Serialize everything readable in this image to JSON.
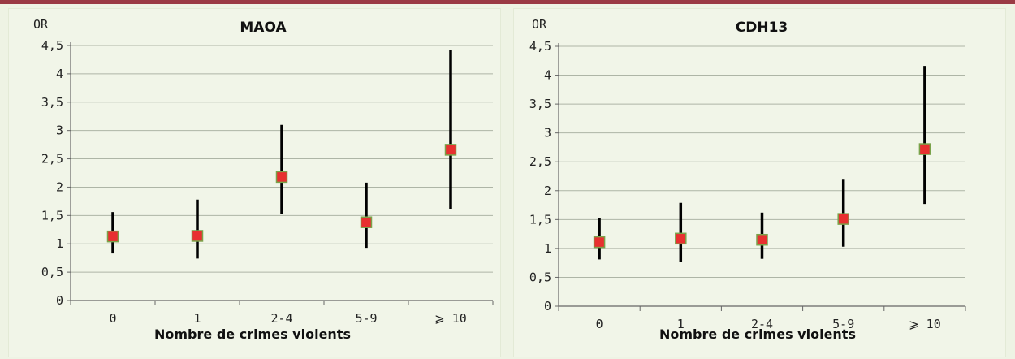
{
  "colors": {
    "accent_bar": "#9a3a44",
    "background": "#eef3e4",
    "point": "#e83030",
    "point_border": "#7aa24a",
    "ci": "#000000"
  },
  "chart_data": [
    {
      "type": "scatter",
      "title": "MAOA",
      "ylabel": "OR",
      "xlabel": "Nombre de crimes violents",
      "categories": [
        "0",
        "1",
        "2-4",
        "5-9",
        "⩾ 10"
      ],
      "ylim": [
        0,
        4.5
      ],
      "yticks": [
        "0",
        "0,5",
        "1",
        "1,5",
        "2",
        "2,5",
        "3",
        "3,5",
        "4",
        "4,5"
      ],
      "grid": true,
      "series": [
        {
          "values": [
            1.13,
            1.14,
            2.18,
            1.38,
            2.66
          ],
          "lower": [
            0.83,
            0.74,
            1.52,
            0.93,
            1.62
          ],
          "upper": [
            1.56,
            1.78,
            3.1,
            2.08,
            4.42
          ]
        }
      ]
    },
    {
      "type": "scatter",
      "title": "CDH13",
      "ylabel": "OR",
      "xlabel": "Nombre de crimes violents",
      "categories": [
        "0",
        "1",
        "2-4",
        "5-9",
        "⩾ 10"
      ],
      "ylim": [
        0,
        4.5
      ],
      "yticks": [
        "0",
        "0,5",
        "1",
        "1,5",
        "2",
        "2,5",
        "3",
        "3,5",
        "4",
        "4,5"
      ],
      "grid": true,
      "series": [
        {
          "values": [
            1.11,
            1.17,
            1.15,
            1.51,
            2.72
          ],
          "lower": [
            0.81,
            0.76,
            0.82,
            1.03,
            1.77
          ],
          "upper": [
            1.53,
            1.79,
            1.62,
            2.19,
            4.16
          ]
        }
      ]
    }
  ]
}
